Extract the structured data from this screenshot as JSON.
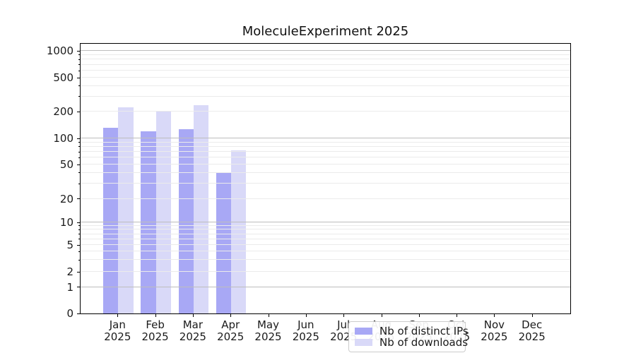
{
  "chart_data": {
    "type": "bar",
    "title": "MoleculeExperiment 2025",
    "year_label": "2025",
    "months": [
      "Jan",
      "Feb",
      "Mar",
      "Apr",
      "May",
      "Jun",
      "Jul",
      "Aug",
      "Sep",
      "Oct",
      "Nov",
      "Dec"
    ],
    "categories": [
      "Jan 2025",
      "Feb 2025",
      "Mar 2025",
      "Apr 2025",
      "May 2025",
      "Jun 2025",
      "Jul 2025",
      "Aug 2025",
      "Sep 2025",
      "Oct 2025",
      "Nov 2025",
      "Dec 2025"
    ],
    "series": [
      {
        "name": "Nb of distinct IPs",
        "color": "#a8a8f5",
        "values": [
          132,
          120,
          126,
          40,
          0,
          0,
          0,
          0,
          0,
          0,
          0,
          0
        ]
      },
      {
        "name": "Nb of downloads",
        "color": "#d9d9f8",
        "values": [
          225,
          200,
          237,
          73,
          0,
          0,
          0,
          0,
          0,
          0,
          0,
          0
        ]
      }
    ],
    "y_ticks": [
      0,
      1,
      2,
      5,
      10,
      20,
      50,
      100,
      200,
      500,
      1000
    ],
    "y_scale": "symlog",
    "ylim": [
      0,
      1200
    ],
    "xlabel": "",
    "ylabel": "",
    "grid": "horizontal",
    "legend_position": "lower center"
  }
}
